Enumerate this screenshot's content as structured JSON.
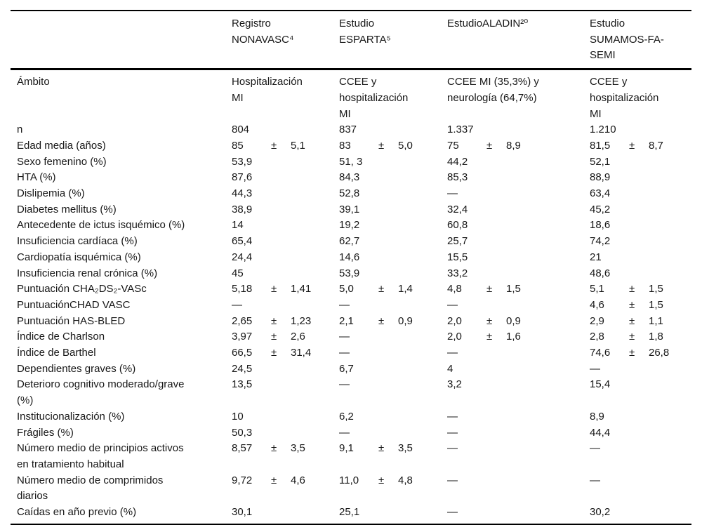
{
  "table": {
    "pm_symbol": "±",
    "dash": "—",
    "columns": [
      {
        "label": "Registro NONAVASC⁴"
      },
      {
        "label": "Estudio ESPARTA⁵"
      },
      {
        "label": "EstudioALADIN²⁰"
      },
      {
        "label": "Estudio SUMAMOS-FA-SEMI"
      }
    ],
    "rows": [
      {
        "label": "Ámbito",
        "cells": [
          {
            "t": "Hospitalización MI"
          },
          {
            "t": "CCEE y hospitalización MI"
          },
          {
            "t": "CCEE MI (35,3%) y neurología (64,7%)"
          },
          {
            "t": "CCEE y hospitalización MI"
          }
        ]
      },
      {
        "label": "n",
        "cells": [
          {
            "t": "804"
          },
          {
            "t": "837"
          },
          {
            "t": "1.337"
          },
          {
            "t": "1.210"
          }
        ]
      },
      {
        "label": "Edad media (años)",
        "cells": [
          {
            "m": "85",
            "sd": "5,1"
          },
          {
            "m": "83",
            "sd": "5,0"
          },
          {
            "m": "75",
            "sd": "8,9"
          },
          {
            "m": "81,5",
            "sd": "8,7"
          }
        ]
      },
      {
        "label": "Sexo femenino (%)",
        "cells": [
          {
            "t": "53,9"
          },
          {
            "t": "51, 3"
          },
          {
            "t": "44,2"
          },
          {
            "t": "52,1"
          }
        ]
      },
      {
        "label": "HTA (%)",
        "cells": [
          {
            "t": "87,6"
          },
          {
            "t": "84,3"
          },
          {
            "t": "85,3"
          },
          {
            "t": "88,9"
          }
        ]
      },
      {
        "label": "Dislipemia (%)",
        "cells": [
          {
            "t": "44,3"
          },
          {
            "t": "52,8"
          },
          {
            "t": "—"
          },
          {
            "t": "63,4"
          }
        ]
      },
      {
        "label": "Diabetes mellitus (%)",
        "cells": [
          {
            "t": "38,9"
          },
          {
            "t": "39,1"
          },
          {
            "t": "32,4"
          },
          {
            "t": "45,2"
          }
        ]
      },
      {
        "label": "Antecedente de ictus isquémico (%)",
        "cells": [
          {
            "t": "14"
          },
          {
            "t": "19,2"
          },
          {
            "t": "60,8"
          },
          {
            "t": "18,6"
          }
        ]
      },
      {
        "label": "Insuficiencia cardíaca (%)",
        "cells": [
          {
            "t": "65,4"
          },
          {
            "t": "62,7"
          },
          {
            "t": "25,7"
          },
          {
            "t": "74,2"
          }
        ]
      },
      {
        "label": "Cardiopatía isquémica (%)",
        "cells": [
          {
            "t": "24,4"
          },
          {
            "t": "14,6"
          },
          {
            "t": "15,5"
          },
          {
            "t": "21"
          }
        ]
      },
      {
        "label": "Insuficiencia renal crónica (%)",
        "cells": [
          {
            "t": "45"
          },
          {
            "t": "53,9"
          },
          {
            "t": "33,2"
          },
          {
            "t": "48,6"
          }
        ]
      },
      {
        "label": "Puntuación CHA₂DS₂-VASc",
        "cells": [
          {
            "m": "5,18",
            "sd": "1,41"
          },
          {
            "m": "5,0",
            "sd": "1,4"
          },
          {
            "m": "4,8",
            "sd": "1,5"
          },
          {
            "m": "5,1",
            "sd": "1,5"
          }
        ]
      },
      {
        "label": "PuntuaciónCHAD VASC",
        "cells": [
          {
            "t": "—"
          },
          {
            "t": "—"
          },
          {
            "t": "—"
          },
          {
            "m": "4,6",
            "sd": "1,5"
          }
        ]
      },
      {
        "label": "Puntuación HAS-BLED",
        "cells": [
          {
            "m": "2,65",
            "sd": "1,23"
          },
          {
            "m": "2,1",
            "sd": "0,9"
          },
          {
            "m": "2,0",
            "sd": "0,9"
          },
          {
            "m": "2,9",
            "sd": "1,1"
          }
        ]
      },
      {
        "label": "Índice de Charlson",
        "cells": [
          {
            "m": "3,97",
            "sd": "2,6"
          },
          {
            "t": "—"
          },
          {
            "m": "2,0",
            "sd": "1,6"
          },
          {
            "m": "2,8",
            "sd": "1,8"
          }
        ]
      },
      {
        "label": "Índice de Barthel",
        "cells": [
          {
            "m": "66,5",
            "sd": "31,4"
          },
          {
            "t": "—"
          },
          {
            "t": "—"
          },
          {
            "m": "74,6",
            "sd": "26,8"
          }
        ]
      },
      {
        "label": "Dependientes graves (%)",
        "cells": [
          {
            "t": "24,5"
          },
          {
            "t": "6,7"
          },
          {
            "t": "4"
          },
          {
            "t": "—"
          }
        ]
      },
      {
        "label": "Deterioro cognitivo moderado/grave (%)",
        "cells": [
          {
            "t": "13,5"
          },
          {
            "t": "—"
          },
          {
            "t": "3,2"
          },
          {
            "t": "15,4"
          }
        ]
      },
      {
        "label": "Institucionalización (%)",
        "cells": [
          {
            "t": "10"
          },
          {
            "t": "6,2"
          },
          {
            "t": "—"
          },
          {
            "t": "8,9"
          }
        ]
      },
      {
        "label": "Frágiles (%)",
        "cells": [
          {
            "t": "50,3"
          },
          {
            "t": "—"
          },
          {
            "t": "—"
          },
          {
            "t": "44,4"
          }
        ]
      },
      {
        "label": "Número medio de principios activos en tratamiento habitual",
        "cells": [
          {
            "m": "8,57",
            "sd": "3,5"
          },
          {
            "m": "9,1",
            "sd": "3,5"
          },
          {
            "t": "—"
          },
          {
            "t": "—"
          }
        ]
      },
      {
        "label": "Número medio de comprimidos diarios",
        "cells": [
          {
            "m": "9,72",
            "sd": "4,6"
          },
          {
            "m": "11,0",
            "sd": "4,8"
          },
          {
            "t": "—"
          },
          {
            "t": "—"
          }
        ]
      },
      {
        "label": "Caídas en año previo (%)",
        "cells": [
          {
            "t": "30,1"
          },
          {
            "t": "25,1"
          },
          {
            "t": "—"
          },
          {
            "t": "30,2"
          }
        ]
      }
    ]
  }
}
